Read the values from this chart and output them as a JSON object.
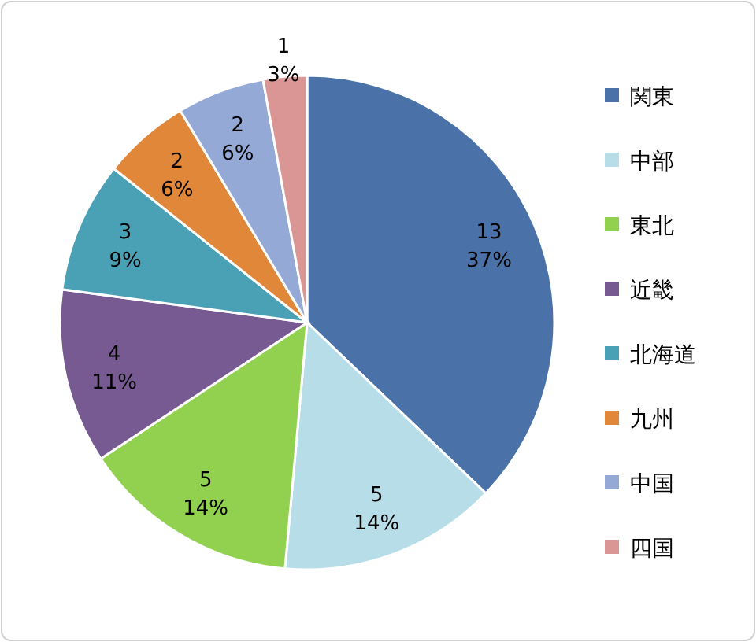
{
  "chart_data": {
    "type": "pie",
    "categories": [
      "関東",
      "中部",
      "東北",
      "近畿",
      "北海道",
      "九州",
      "中国",
      "四国"
    ],
    "values": [
      13,
      5,
      5,
      4,
      3,
      2,
      2,
      1
    ],
    "colors": [
      "#4a72a8",
      "#b7dde8",
      "#92d050",
      "#775a92",
      "#4aa0b5",
      "#e0873a",
      "#95a9d6",
      "#d99694"
    ],
    "value_labels": [
      "13\n37%",
      "5\n14%",
      "5\n14%",
      "4\n11%",
      "3\n9%",
      "2\n6%",
      "2\n6%",
      "1\n3%"
    ],
    "legend": "right"
  }
}
